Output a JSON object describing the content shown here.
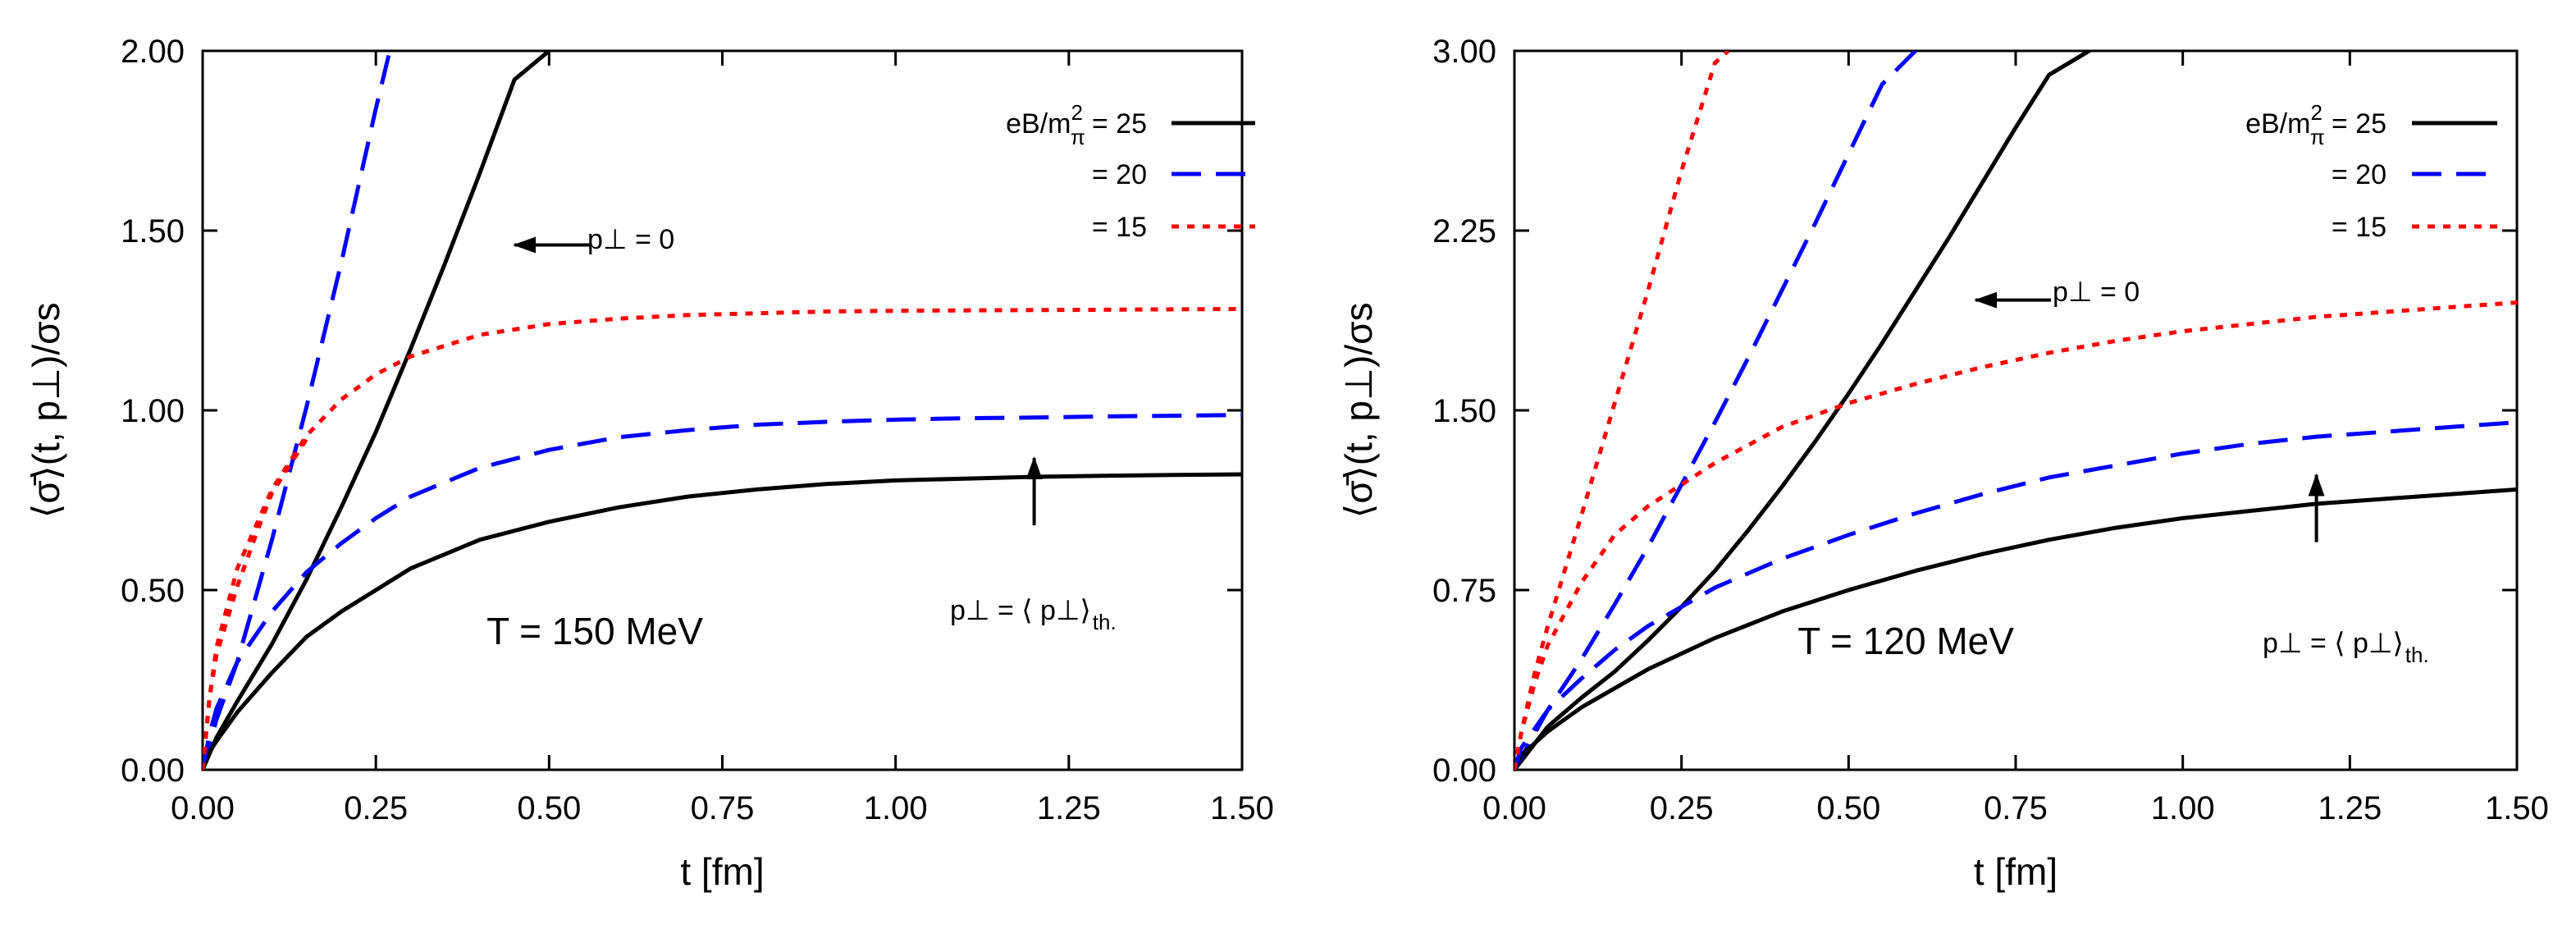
{
  "chart_data": [
    {
      "type": "line",
      "panel": "left",
      "xlabel": "t [fm]",
      "ylabel": "⟨σ̄⟩(t, p⊥)/σs",
      "xlim": [
        0,
        1.5
      ],
      "ylim": [
        0,
        2.0
      ],
      "x_ticks": [
        "0.00",
        "0.25",
        "0.50",
        "0.75",
        "1.00",
        "1.25",
        "1.50"
      ],
      "y_ticks": [
        "0.00",
        "0.50",
        "1.00",
        "1.50",
        "2.00"
      ],
      "temperature_label": "T = 150 MeV",
      "legend": {
        "title_text": "eB/m",
        "title_sup": "2",
        "title_sub": "π",
        "entries": [
          "= 25",
          "= 20",
          "= 15"
        ]
      },
      "annotations": {
        "p0": "p⊥ = 0",
        "pth_main": "p⊥ = ⟨ p⊥⟩",
        "pth_sub": "th."
      },
      "annotation_points": {
        "p0_arrow": {
          "x": 0.45,
          "y": 1.46
        },
        "pth_arrow": {
          "x": 1.2,
          "y": 0.68
        }
      },
      "series": [
        {
          "name": "eB/mπ² = 25, p⊥ = 0",
          "color": "#000000",
          "style": "solid",
          "x": [
            0,
            0.02,
            0.05,
            0.1,
            0.15,
            0.2,
            0.25,
            0.3,
            0.35,
            0.4,
            0.45,
            0.5
          ],
          "y": [
            0,
            0.09,
            0.19,
            0.35,
            0.53,
            0.73,
            0.94,
            1.17,
            1.41,
            1.66,
            1.92,
            2.0
          ]
        },
        {
          "name": "eB/mπ² = 20, p⊥ = 0",
          "color": "#0000ff",
          "style": "dashed",
          "x": [
            0,
            0.02,
            0.05,
            0.1,
            0.15,
            0.2,
            0.25,
            0.27
          ],
          "y": [
            0,
            0.14,
            0.3,
            0.64,
            1.01,
            1.41,
            1.84,
            2.0
          ]
        },
        {
          "name": "eB/mπ² = 25, p⊥ = ⟨p⊥⟩th",
          "color": "#000000",
          "style": "solid",
          "x": [
            0,
            0.01,
            0.02,
            0.05,
            0.1,
            0.15,
            0.2,
            0.25,
            0.3,
            0.4,
            0.5,
            0.6,
            0.7,
            0.8,
            0.9,
            1.0,
            1.1,
            1.2,
            1.3,
            1.4,
            1.5
          ],
          "y": [
            0,
            0.05,
            0.08,
            0.16,
            0.27,
            0.37,
            0.44,
            0.5,
            0.56,
            0.64,
            0.69,
            0.73,
            0.76,
            0.78,
            0.795,
            0.805,
            0.81,
            0.815,
            0.818,
            0.82,
            0.822
          ]
        },
        {
          "name": "eB/mπ² = 20, p⊥ = ⟨p⊥⟩th",
          "color": "#0000ff",
          "style": "dashed",
          "x": [
            0,
            0.01,
            0.02,
            0.05,
            0.1,
            0.15,
            0.2,
            0.25,
            0.3,
            0.4,
            0.5,
            0.6,
            0.7,
            0.8,
            0.9,
            1.0,
            1.1,
            1.2,
            1.3,
            1.4,
            1.5
          ],
          "y": [
            0,
            0.1,
            0.17,
            0.3,
            0.44,
            0.55,
            0.63,
            0.7,
            0.76,
            0.84,
            0.89,
            0.925,
            0.945,
            0.96,
            0.968,
            0.974,
            0.978,
            0.98,
            0.983,
            0.985,
            0.987
          ]
        },
        {
          "name": "eB/mπ² = 15, p⊥ = 0",
          "color": "#ff0000",
          "style": "dotted",
          "x": [
            0,
            0.005,
            0.01,
            0.02,
            0.05,
            0.08,
            0.1,
            0.13,
            0.15
          ],
          "y": [
            0,
            0.1,
            0.2,
            0.32,
            0.51,
            0.67,
            0.77,
            0.86,
            0.92
          ]
        },
        {
          "name": "eB/mπ² = 15, p⊥ = ⟨p⊥⟩th",
          "color": "#ff0000",
          "style": "dotted",
          "x": [
            0,
            0.005,
            0.01,
            0.02,
            0.05,
            0.1,
            0.15,
            0.2,
            0.25,
            0.3,
            0.35,
            0.4,
            0.5,
            0.6,
            0.7,
            0.8,
            0.9,
            1.0,
            1.1,
            1.2,
            1.3,
            1.4,
            1.5
          ],
          "y": [
            0,
            0.1,
            0.2,
            0.34,
            0.56,
            0.78,
            0.93,
            1.03,
            1.1,
            1.15,
            1.18,
            1.21,
            1.24,
            1.255,
            1.265,
            1.27,
            1.275,
            1.277,
            1.278,
            1.279,
            1.28,
            1.281,
            1.282
          ]
        }
      ]
    },
    {
      "type": "line",
      "panel": "right",
      "xlabel": "t [fm]",
      "ylabel": "⟨σ̄⟩(t, p⊥)/σs",
      "xlim": [
        0,
        1.5
      ],
      "ylim": [
        0,
        3.0
      ],
      "x_ticks": [
        "0.00",
        "0.25",
        "0.50",
        "0.75",
        "1.00",
        "1.25",
        "1.50"
      ],
      "y_ticks": [
        "0.00",
        "0.75",
        "1.50",
        "2.25",
        "3.00"
      ],
      "temperature_label": "T = 120 MeV",
      "legend": {
        "title_text": "eB/m",
        "title_sup": "2",
        "title_sub": "π",
        "entries": [
          "= 25",
          "= 20",
          "= 15"
        ]
      },
      "annotations": {
        "p0": "p⊥ = 0",
        "pth_main": "p⊥ = ⟨ p⊥⟩",
        "pth_sub": "th."
      },
      "annotation_points": {
        "p0_arrow": {
          "x": 0.69,
          "y": 1.96
        },
        "pth_arrow": {
          "x": 1.2,
          "y": 0.95
        }
      },
      "series": [
        {
          "name": "eB/mπ² = 25, p⊥ = 0",
          "color": "#000000",
          "style": "solid",
          "x": [
            0,
            0.05,
            0.1,
            0.15,
            0.2,
            0.25,
            0.3,
            0.35,
            0.4,
            0.45,
            0.5,
            0.55,
            0.6,
            0.65,
            0.7,
            0.75,
            0.8,
            0.86
          ],
          "y": [
            0,
            0.18,
            0.3,
            0.41,
            0.54,
            0.68,
            0.83,
            1.0,
            1.18,
            1.37,
            1.57,
            1.78,
            2.0,
            2.22,
            2.45,
            2.68,
            2.9,
            3.0
          ]
        },
        {
          "name": "eB/mπ² = 20, p⊥ = 0",
          "color": "#0000ff",
          "style": "dashed",
          "x": [
            0,
            0.05,
            0.1,
            0.15,
            0.2,
            0.25,
            0.3,
            0.35,
            0.4,
            0.45,
            0.5,
            0.55,
            0.6
          ],
          "y": [
            0,
            0.25,
            0.46,
            0.69,
            0.93,
            1.19,
            1.45,
            1.72,
            2.0,
            2.28,
            2.57,
            2.86,
            3.0
          ]
        },
        {
          "name": "eB/mπ² = 15, p⊥ = 0",
          "color": "#ff0000",
          "style": "dotted",
          "x": [
            0,
            0.01,
            0.03,
            0.05,
            0.1,
            0.15,
            0.2,
            0.25,
            0.3,
            0.32
          ],
          "y": [
            0,
            0.15,
            0.4,
            0.6,
            1.06,
            1.53,
            2.0,
            2.5,
            2.95,
            3.0
          ]
        },
        {
          "name": "eB/mπ² = 25, p⊥ = ⟨p⊥⟩th",
          "color": "#000000",
          "style": "solid",
          "x": [
            0,
            0.01,
            0.05,
            0.1,
            0.15,
            0.2,
            0.3,
            0.4,
            0.5,
            0.6,
            0.7,
            0.8,
            0.9,
            1.0,
            1.1,
            1.2,
            1.3,
            1.4,
            1.5
          ],
          "y": [
            0,
            0.06,
            0.16,
            0.26,
            0.34,
            0.42,
            0.55,
            0.66,
            0.75,
            0.83,
            0.9,
            0.96,
            1.01,
            1.05,
            1.08,
            1.11,
            1.13,
            1.15,
            1.17
          ]
        },
        {
          "name": "eB/mπ² = 20, p⊥ = ⟨p⊥⟩th",
          "color": "#0000ff",
          "style": "dashed",
          "x": [
            0,
            0.01,
            0.05,
            0.1,
            0.15,
            0.2,
            0.3,
            0.4,
            0.5,
            0.6,
            0.7,
            0.8,
            0.9,
            1.0,
            1.1,
            1.2,
            1.3,
            1.4,
            1.5
          ],
          "y": [
            0,
            0.09,
            0.25,
            0.38,
            0.5,
            0.6,
            0.76,
            0.88,
            0.98,
            1.07,
            1.15,
            1.22,
            1.27,
            1.32,
            1.36,
            1.39,
            1.41,
            1.43,
            1.45
          ]
        },
        {
          "name": "eB/mπ² = 15, p⊥ = ⟨p⊥⟩th",
          "color": "#ff0000",
          "style": "dotted",
          "x": [
            0,
            0.01,
            0.03,
            0.05,
            0.1,
            0.15,
            0.2,
            0.3,
            0.4,
            0.5,
            0.6,
            0.7,
            0.8,
            0.9,
            1.0,
            1.1,
            1.2,
            1.3,
            1.4,
            1.5
          ],
          "y": [
            0,
            0.15,
            0.36,
            0.52,
            0.78,
            0.98,
            1.1,
            1.28,
            1.43,
            1.53,
            1.61,
            1.68,
            1.74,
            1.79,
            1.83,
            1.86,
            1.89,
            1.91,
            1.93,
            1.95
          ]
        }
      ]
    }
  ]
}
